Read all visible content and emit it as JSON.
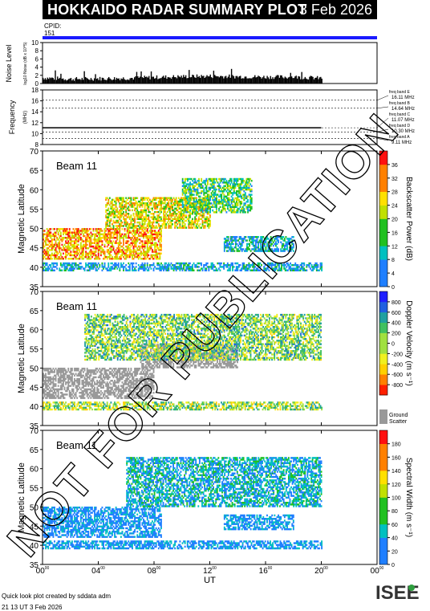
{
  "header": {
    "title": "HOKKAIDO RADAR SUMMARY PLOT",
    "date": "3 Feb 2026"
  },
  "cpid": {
    "label": "CPID:",
    "value": "151"
  },
  "colors": {
    "cpid_bar": "#1a1aff",
    "ground_scatter": "#999999",
    "watermark": "#000000"
  },
  "noise_panel": {
    "ylabel": "Noise Level",
    "ysublabel": "log10 Noise (dB x 10^5)",
    "yticks": [
      "0",
      "2",
      "4",
      "6",
      "8",
      "10"
    ],
    "ylim": [
      0,
      10
    ]
  },
  "freq_panel": {
    "ylabel": "Frequency",
    "ysublabel": "(MHz)",
    "yticks": [
      "8",
      "10",
      "12",
      "14",
      "16",
      "18"
    ],
    "ylim": [
      8,
      18
    ],
    "bands": [
      {
        "name": "freq band E",
        "value": "16.11 MHz",
        "mhz": 16.11
      },
      {
        "name": "freq band B",
        "value": "14.64 MHz",
        "mhz": 14.64
      },
      {
        "name": "freq band C",
        "value": "11.07 MHz",
        "mhz": 11.07
      },
      {
        "name": "freq band D",
        "value": "10.30 MHz",
        "mhz": 10.3
      },
      {
        "name": "freq band A",
        "value": "9.11 MHz",
        "mhz": 9.11
      }
    ]
  },
  "panels": [
    {
      "beam": "Beam 11",
      "ylabel": "Magnetic Latitude",
      "yticks": [
        "35",
        "40",
        "45",
        "50",
        "55",
        "60",
        "65",
        "70"
      ],
      "ylim": [
        35,
        70
      ],
      "colorbar": {
        "label": "Backscatter Power (dB)",
        "ticks": [
          "0",
          "4",
          "8",
          "12",
          "16",
          "20",
          "24",
          "28",
          "32",
          "36"
        ],
        "range": [
          0,
          40
        ]
      }
    },
    {
      "beam": "Beam 11",
      "ylabel": "Magnetic Latitude",
      "yticks": [
        "35",
        "40",
        "45",
        "50",
        "55",
        "60",
        "65",
        "70"
      ],
      "ylim": [
        35,
        70
      ],
      "colorbar": {
        "label": "Doppler Velocity (m s⁻¹)",
        "ticks": [
          "-800",
          "-600",
          "-400",
          "-200",
          "0",
          "200",
          "400",
          "600",
          "800"
        ],
        "range": [
          -1000,
          1000
        ],
        "ground_label": [
          "Ground",
          "Scatter"
        ]
      }
    },
    {
      "beam": "Beam 11",
      "ylabel": "Magnetic Latitude",
      "yticks": [
        "35",
        "40",
        "45",
        "50",
        "55",
        "60",
        "65",
        "70"
      ],
      "ylim": [
        35,
        70
      ],
      "colorbar": {
        "label": "Spectral Width (m s⁻¹)",
        "ticks": [
          "0",
          "20",
          "40",
          "60",
          "80",
          "100",
          "120",
          "140",
          "160",
          "180"
        ],
        "range": [
          0,
          200
        ]
      }
    }
  ],
  "xaxis": {
    "label": "UT",
    "ticks": [
      "00",
      "04",
      "08",
      "12",
      "16",
      "20",
      "00"
    ],
    "tick_sup": "00",
    "range_hours": [
      0,
      24
    ]
  },
  "watermark": "NOT FOR PUBLICATION",
  "footer": {
    "line1": "Quick look plot created by sddata adm",
    "line2": "21 13 UT  3 Feb 2026"
  },
  "logo": {
    "text": "ISEE"
  },
  "chart_data": {
    "type": "heatmap",
    "x_units": "UT hours",
    "xlim": [
      0,
      24
    ],
    "ylim": [
      35,
      70
    ],
    "data_end_hour": 20,
    "noise_level": {
      "x": [
        0,
        2,
        4,
        6,
        8,
        10,
        12,
        14,
        16,
        18,
        20
      ],
      "y": [
        1.3,
        1.0,
        1.1,
        1.2,
        1.4,
        1.6,
        1.7,
        1.6,
        1.5,
        1.5,
        1.2
      ]
    },
    "frequency": {
      "x": [
        0,
        20
      ],
      "y": [
        11.07,
        11.07
      ]
    },
    "backscatter_regions": [
      {
        "t0": 0.0,
        "t1": 8.5,
        "lat0": 42,
        "lat1": 50,
        "dB": 28,
        "desc": "strong band"
      },
      {
        "t0": 4.5,
        "t1": 12,
        "lat0": 50,
        "lat1": 58,
        "dB": 24
      },
      {
        "t0": 10,
        "t1": 15,
        "lat0": 54,
        "lat1": 63,
        "dB": 14
      },
      {
        "t0": 13,
        "t1": 18,
        "lat0": 44,
        "lat1": 48,
        "dB": 8
      },
      {
        "t0": 0.0,
        "t1": 20,
        "lat0": 39,
        "lat1": 41,
        "dB": 6
      }
    ],
    "velocity_regions": [
      {
        "t0": 0.0,
        "t1": 8,
        "lat0": 42,
        "lat1": 50,
        "ground": true
      },
      {
        "t0": 7,
        "t1": 14,
        "lat0": 50,
        "lat1": 56,
        "ground": true
      },
      {
        "t0": 3,
        "t1": 20,
        "lat0": 52,
        "lat1": 64,
        "vel": 100
      },
      {
        "t0": 0.0,
        "t1": 20,
        "lat0": 39,
        "lat1": 41,
        "vel": 0
      }
    ],
    "width_regions": [
      {
        "t0": 0.0,
        "t1": 8.5,
        "lat0": 42,
        "lat1": 50,
        "w": 15
      },
      {
        "t0": 6,
        "t1": 20,
        "lat0": 50,
        "lat1": 63,
        "w": 40
      },
      {
        "t0": 13,
        "t1": 18,
        "lat0": 44,
        "lat1": 48,
        "w": 20
      },
      {
        "t0": 0.0,
        "t1": 20,
        "lat0": 39,
        "lat1": 41,
        "w": 20
      }
    ]
  }
}
